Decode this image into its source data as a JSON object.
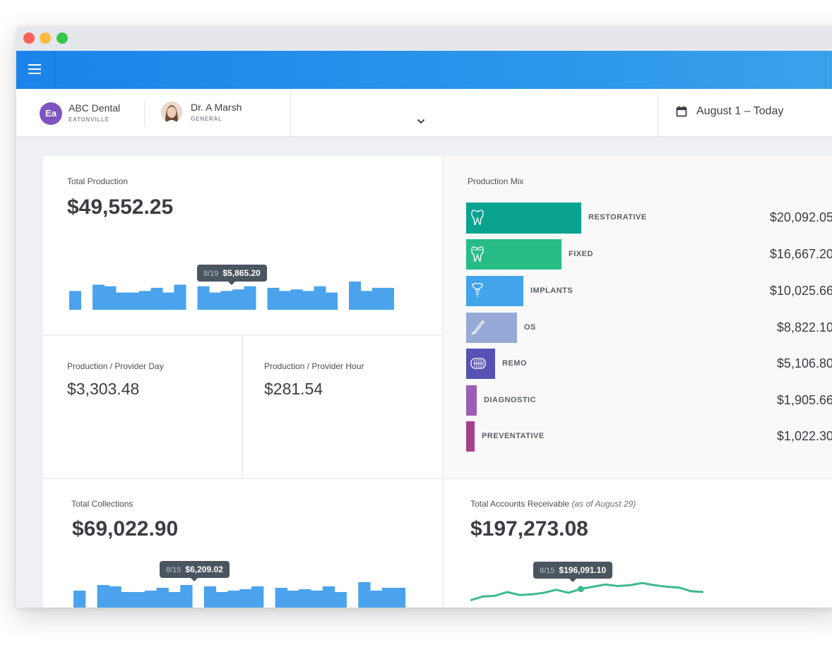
{
  "window": {
    "controls": [
      "close",
      "minimize",
      "maximize"
    ]
  },
  "appbar": {
    "menu_icon": "hamburger-icon"
  },
  "subbar": {
    "org": {
      "initials": "Ea",
      "name": "ABC Dental",
      "sub": "EATONVILLE"
    },
    "provider": {
      "name": "Dr. A Marsh",
      "sub": "GENERAL"
    },
    "date_range": "August 1 – Today"
  },
  "total_production": {
    "label": "Total Production",
    "value": "$49,552.25",
    "tooltip_date": "8/19",
    "tooltip_value": "$5,865.20"
  },
  "per_day": {
    "label": "Production / Provider Day",
    "value": "$3,303.48"
  },
  "per_hour": {
    "label": "Production / Provider Hour",
    "value": "$281.54"
  },
  "production_mix": {
    "label": "Production Mix",
    "items": [
      {
        "name": "RESTORATIVE",
        "value": "$20,092.05",
        "color": "#0aa38f",
        "icon": "tooth-icon"
      },
      {
        "name": "FIXED",
        "value": "$16,667.20",
        "color": "#27bc86",
        "icon": "crown-icon"
      },
      {
        "name": "IMPLANTS",
        "value": "$10,025.66",
        "color": "#42a4ea",
        "icon": "implant-icon"
      },
      {
        "name": "OS",
        "value": "$8,822.10",
        "color": "#97a9d6",
        "icon": "scalpel-icon"
      },
      {
        "name": "REMO",
        "value": "$5,106.80",
        "color": "#5751b3",
        "icon": "denture-icon"
      },
      {
        "name": "DIAGNOSTIC",
        "value": "$1,905.66",
        "color": "#9b5db5",
        "icon": ""
      },
      {
        "name": "PREVENTATIVE",
        "value": "$1,022.30",
        "color": "#a8418b",
        "icon": ""
      }
    ]
  },
  "total_collections": {
    "label": "Total Collections",
    "value": "$69,022.90",
    "tooltip_date": "8/15",
    "tooltip_value": "$6,209.02"
  },
  "accounts_receivable": {
    "label": "Total Accounts Receivable",
    "label_note": "(as of August 29)",
    "value": "$197,273.08",
    "tooltip_date": "8/15",
    "tooltip_value": "$196,091.10"
  },
  "chart_data": [
    {
      "type": "bar",
      "title": "Total Production",
      "color": "#4aa3ec",
      "values": [
        24,
        0,
        32,
        30,
        22,
        22,
        24,
        28,
        22,
        32,
        0,
        30,
        22,
        24,
        26,
        30,
        0,
        28,
        24,
        26,
        24,
        30,
        22,
        0,
        36,
        24,
        28,
        28
      ]
    },
    {
      "type": "bar",
      "title": "Total Collections",
      "color": "#4aa3ec",
      "values": [
        24,
        0,
        32,
        30,
        22,
        22,
        24,
        28,
        22,
        32,
        0,
        30,
        22,
        24,
        26,
        30,
        0,
        28,
        24,
        26,
        24,
        30,
        22,
        0,
        36,
        24,
        28,
        28
      ]
    },
    {
      "type": "line",
      "title": "Total Accounts Receivable",
      "color": "#3dba8d",
      "values": [
        194.6,
        195.1,
        195.2,
        195.7,
        195.3,
        195.4,
        195.6,
        196.0,
        195.6,
        196.1,
        196.4,
        196.7,
        196.5,
        196.6,
        196.9,
        196.6,
        196.4,
        196.3,
        195.8,
        195.7
      ]
    }
  ]
}
